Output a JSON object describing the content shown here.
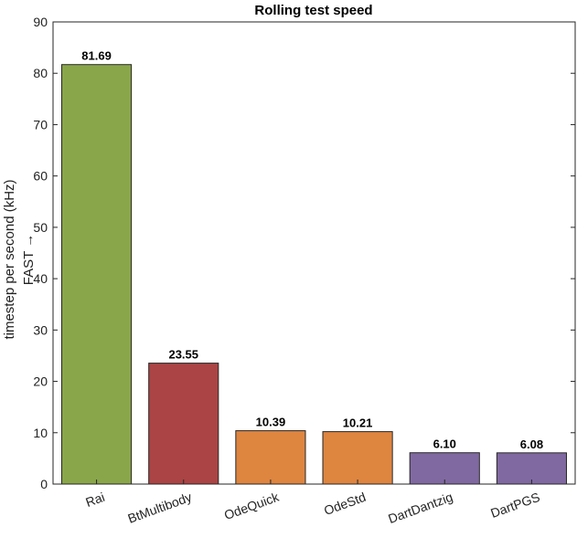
{
  "chart_data": {
    "type": "bar",
    "title": "Rolling test speed",
    "ylabel_lines": [
      "timestep per second (kHz)",
      "FAST →"
    ],
    "xlabel": "",
    "ylim": [
      0,
      90
    ],
    "yticks": [
      0,
      10,
      20,
      30,
      40,
      50,
      60,
      70,
      80,
      90
    ],
    "grid": false,
    "categories": [
      "Rai",
      "BtMultibody",
      "OdeQuick",
      "OdeStd",
      "DartDantzig",
      "DartPGS"
    ],
    "values": [
      81.69,
      23.55,
      10.39,
      10.21,
      6.1,
      6.08
    ],
    "data_labels": [
      "81.69",
      "23.55",
      "10.39",
      "10.21",
      "6.10",
      "6.08"
    ],
    "colors": [
      "#8aa64a",
      "#ab4444",
      "#de8540",
      "#de8540",
      "#8069a1",
      "#8069a1"
    ]
  }
}
